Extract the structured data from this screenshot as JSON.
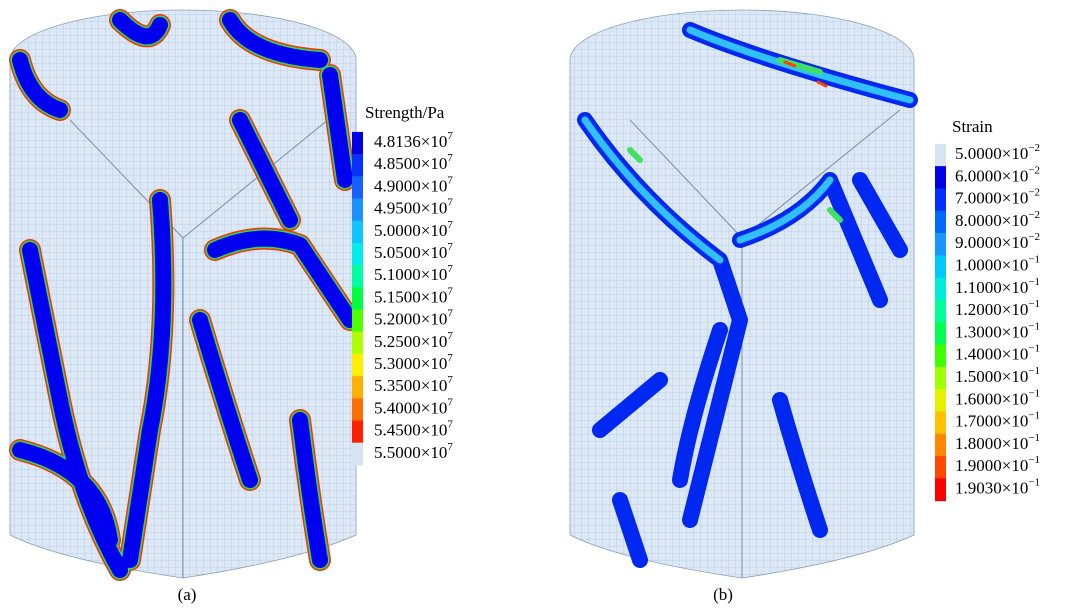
{
  "panels": [
    {
      "caption": "(a)",
      "legend": {
        "title": "Strength/Pa",
        "entries": [
          {
            "base": "4.8136×10",
            "exp": "7"
          },
          {
            "base": "4.8500×10",
            "exp": "7"
          },
          {
            "base": "4.9000×10",
            "exp": "7"
          },
          {
            "base": "4.9500×10",
            "exp": "7"
          },
          {
            "base": "5.0000×10",
            "exp": "7"
          },
          {
            "base": "5.0500×10",
            "exp": "7"
          },
          {
            "base": "5.1000×10",
            "exp": "7"
          },
          {
            "base": "5.1500×10",
            "exp": "7"
          },
          {
            "base": "5.2000×10",
            "exp": "7"
          },
          {
            "base": "5.2500×10",
            "exp": "7"
          },
          {
            "base": "5.3000×10",
            "exp": "7"
          },
          {
            "base": "5.3500×10",
            "exp": "7"
          },
          {
            "base": "5.4000×10",
            "exp": "7"
          },
          {
            "base": "5.4500×10",
            "exp": "7"
          },
          {
            "base": "5.5000×10",
            "exp": "7"
          }
        ],
        "colors": [
          "#0000e6",
          "#0a30ff",
          "#1560ff",
          "#1c90ff",
          "#10c4ff",
          "#00ecec",
          "#00ffa0",
          "#00ff40",
          "#50ff00",
          "#b0ff00",
          "#ffee00",
          "#ffb000",
          "#ff7000",
          "#ff2000",
          "#d6e4f2"
        ]
      }
    },
    {
      "caption": "(b)",
      "legend": {
        "title": "Strain",
        "entries": [
          {
            "base": "5.0000×10",
            "exp": "−2"
          },
          {
            "base": "6.0000×10",
            "exp": "−2"
          },
          {
            "base": "7.0000×10",
            "exp": "−2"
          },
          {
            "base": "8.0000×10",
            "exp": "−2"
          },
          {
            "base": "9.0000×10",
            "exp": "−2"
          },
          {
            "base": "1.0000×10",
            "exp": "−1"
          },
          {
            "base": "1.1000×10",
            "exp": "−1"
          },
          {
            "base": "1.2000×10",
            "exp": "−1"
          },
          {
            "base": "1.3000×10",
            "exp": "−1"
          },
          {
            "base": "1.4000×10",
            "exp": "−1"
          },
          {
            "base": "1.5000×10",
            "exp": "−1"
          },
          {
            "base": "1.6000×10",
            "exp": "−1"
          },
          {
            "base": "1.7000×10",
            "exp": "−1"
          },
          {
            "base": "1.8000×10",
            "exp": "−1"
          },
          {
            "base": "1.9000×10",
            "exp": "−1"
          },
          {
            "base": "1.9030×10",
            "exp": "−1"
          }
        ],
        "colors": [
          "#d6e4f2",
          "#0000e0",
          "#0030ff",
          "#0068ff",
          "#1898ff",
          "#00c8ff",
          "#00ecd8",
          "#00ff98",
          "#00ff50",
          "#40ff00",
          "#a0ff00",
          "#e8f000",
          "#ffc000",
          "#ff8800",
          "#ff4800",
          "#ff0000"
        ]
      }
    }
  ]
}
